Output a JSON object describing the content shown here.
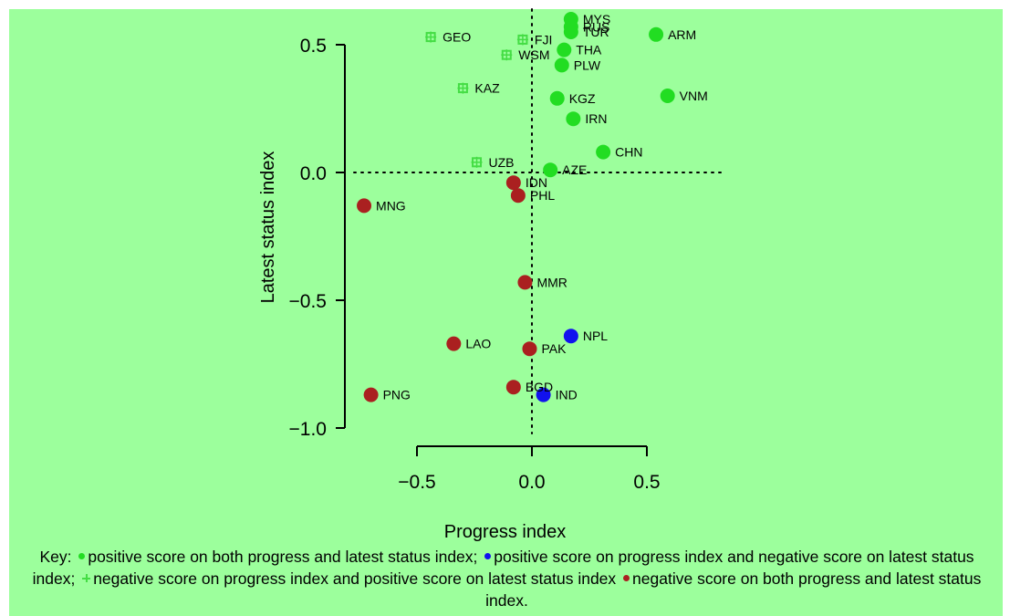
{
  "colors": {
    "background": "#9cff9c",
    "both_positive": "#22dd22",
    "progress_positive_status_negative": "#1111ee",
    "progress_negative_status_positive": "#44dd44",
    "both_negative": "#aa2020"
  },
  "chart_data": {
    "type": "scatter",
    "xlabel": "Progress index",
    "ylabel": "Latest status index",
    "xlim": [
      -0.75,
      0.85
    ],
    "ylim": [
      -1.05,
      0.62
    ],
    "xticks": [
      -0.5,
      0.0,
      0.5
    ],
    "xtick_labels": [
      "−0.5",
      "0.0",
      "0.5"
    ],
    "yticks": [
      0.5,
      0.0,
      -0.5,
      -1.0
    ],
    "ytick_labels": [
      "0.5",
      "0.0",
      "−0.5",
      "−1.0"
    ],
    "reference_lines": {
      "x": 0,
      "y": 0,
      "style": "dotted"
    },
    "grid": false,
    "groups": [
      {
        "key": "both_positive",
        "marker": "filled-circle",
        "color": "#22dd22"
      },
      {
        "key": "progress_positive_status_negative",
        "marker": "filled-circle",
        "color": "#1111ee"
      },
      {
        "key": "progress_negative_status_positive",
        "marker": "small-cross",
        "color": "#44dd44"
      },
      {
        "key": "both_negative",
        "marker": "filled-circle",
        "color": "#aa2020"
      }
    ],
    "points": [
      {
        "label": "MYS",
        "x": 0.17,
        "y": 0.6,
        "group": "both_positive"
      },
      {
        "label": "RUS",
        "x": 0.17,
        "y": 0.57,
        "group": "both_positive"
      },
      {
        "label": "TUR",
        "x": 0.17,
        "y": 0.55,
        "group": "both_positive"
      },
      {
        "label": "ARM",
        "x": 0.54,
        "y": 0.54,
        "group": "both_positive"
      },
      {
        "label": "THA",
        "x": 0.14,
        "y": 0.48,
        "group": "both_positive"
      },
      {
        "label": "PLW",
        "x": 0.13,
        "y": 0.42,
        "group": "both_positive"
      },
      {
        "label": "VNM",
        "x": 0.59,
        "y": 0.3,
        "group": "both_positive"
      },
      {
        "label": "KGZ",
        "x": 0.11,
        "y": 0.29,
        "group": "both_positive"
      },
      {
        "label": "IRN",
        "x": 0.18,
        "y": 0.21,
        "group": "both_positive"
      },
      {
        "label": "CHN",
        "x": 0.31,
        "y": 0.08,
        "group": "both_positive"
      },
      {
        "label": "AZE",
        "x": 0.08,
        "y": 0.01,
        "group": "both_positive"
      },
      {
        "label": "NPL",
        "x": 0.17,
        "y": -0.64,
        "group": "progress_positive_status_negative"
      },
      {
        "label": "IND",
        "x": 0.05,
        "y": -0.87,
        "group": "progress_positive_status_negative"
      },
      {
        "label": "GEO",
        "x": -0.44,
        "y": 0.53,
        "group": "progress_negative_status_positive"
      },
      {
        "label": "FJI",
        "x": -0.04,
        "y": 0.52,
        "group": "progress_negative_status_positive"
      },
      {
        "label": "WSM",
        "x": -0.11,
        "y": 0.46,
        "group": "progress_negative_status_positive"
      },
      {
        "label": "KAZ",
        "x": -0.3,
        "y": 0.33,
        "group": "progress_negative_status_positive"
      },
      {
        "label": "UZB",
        "x": -0.24,
        "y": 0.04,
        "group": "progress_negative_status_positive"
      },
      {
        "label": "IDN",
        "x": -0.08,
        "y": -0.04,
        "group": "both_negative"
      },
      {
        "label": "PHL",
        "x": -0.06,
        "y": -0.09,
        "group": "both_negative"
      },
      {
        "label": "MNG",
        "x": -0.73,
        "y": -0.13,
        "group": "both_negative"
      },
      {
        "label": "MMR",
        "x": -0.03,
        "y": -0.43,
        "group": "both_negative"
      },
      {
        "label": "LAO",
        "x": -0.34,
        "y": -0.67,
        "group": "both_negative"
      },
      {
        "label": "PAK",
        "x": -0.01,
        "y": -0.69,
        "group": "both_negative"
      },
      {
        "label": "BGD",
        "x": -0.08,
        "y": -0.84,
        "group": "both_negative"
      },
      {
        "label": "PNG",
        "x": -0.7,
        "y": -0.87,
        "group": "both_negative"
      }
    ]
  },
  "key": {
    "prefix": "Key:",
    "both_positive_text": "positive score on both progress and latest status index;",
    "progress_positive_status_negative_text": "positive score on progress index and negative score on latest status index;",
    "progress_negative_status_positive_text": "negative score on progress index and positive score on latest status index",
    "both_negative_text": "negative score on both progress and latest status index."
  }
}
